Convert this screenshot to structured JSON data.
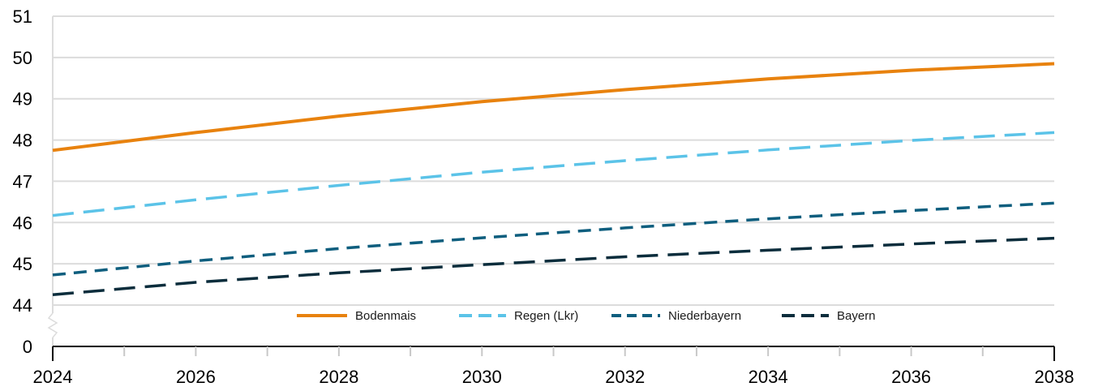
{
  "chart_data": {
    "type": "line",
    "title": "",
    "xlabel": "",
    "ylabel": "",
    "xlim": [
      2024,
      2038
    ],
    "x_ticks": [
      "2024",
      "2026",
      "2028",
      "2030",
      "2032",
      "2034",
      "2036",
      "2038"
    ],
    "y_ticks": [
      "0",
      "44",
      "45",
      "46",
      "47",
      "48",
      "49",
      "50",
      "51"
    ],
    "ylim": [
      44,
      51
    ],
    "y_axis_break": true,
    "grid": "horizontal",
    "legend_position": "bottom-center inside plot",
    "series": [
      {
        "name": "Bodenmais",
        "color": "#e8820e",
        "dash": "solid",
        "x": [
          2024,
          2026,
          2028,
          2030,
          2032,
          2034,
          2036,
          2038
        ],
        "values": [
          47.75,
          48.18,
          48.58,
          48.93,
          49.22,
          49.48,
          49.69,
          49.85
        ]
      },
      {
        "name": "Regen (Lkr)",
        "color": "#5bc3e8",
        "dash": "long-dash",
        "x": [
          2024,
          2026,
          2028,
          2030,
          2032,
          2034,
          2036,
          2038
        ],
        "values": [
          46.17,
          46.55,
          46.9,
          47.22,
          47.5,
          47.76,
          47.99,
          48.18
        ]
      },
      {
        "name": "Niederbayern",
        "color": "#0e5e7e",
        "dash": "dash",
        "x": [
          2024,
          2026,
          2028,
          2030,
          2032,
          2034,
          2036,
          2038
        ],
        "values": [
          44.73,
          45.07,
          45.37,
          45.63,
          45.87,
          46.09,
          46.29,
          46.47
        ]
      },
      {
        "name": "Bayern",
        "color": "#0b2d3c",
        "dash": "long-dash",
        "x": [
          2024,
          2026,
          2028,
          2030,
          2032,
          2034,
          2036,
          2038
        ],
        "values": [
          44.25,
          44.55,
          44.78,
          44.98,
          45.17,
          45.33,
          45.48,
          45.62
        ]
      }
    ]
  }
}
